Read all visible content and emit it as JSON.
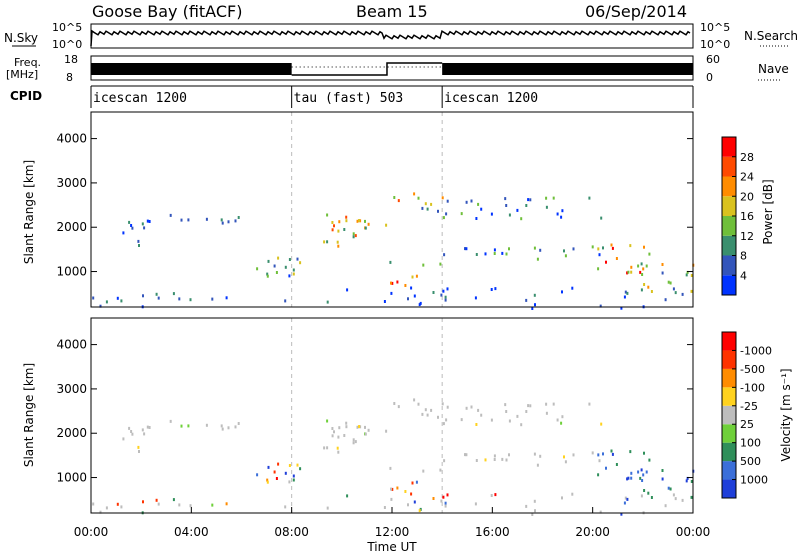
{
  "header": {
    "station": "Goose Bay (fitACF)",
    "beam": "Beam 15",
    "date": "06/Sep/2014"
  },
  "noise_panel": {
    "left_label": "N.Sky",
    "right_label": "N.Search",
    "left_ticks": [
      "10^5",
      "10^0"
    ],
    "right_ticks": [
      "10^5",
      "10^0"
    ]
  },
  "freq_panel": {
    "left_label_top": "Freq.",
    "left_label_bottom": "[MHz]",
    "right_label": "Nave",
    "left_ticks": [
      "18",
      "8"
    ],
    "right_ticks": [
      "60",
      "0"
    ]
  },
  "cpid_panel": {
    "label": "CPID",
    "segments": [
      {
        "name": "icescan 1200",
        "start_hour": 0,
        "end_hour": 8
      },
      {
        "name": "tau (fast) 503",
        "start_hour": 8,
        "end_hour": 14
      },
      {
        "name": "icescan 1200",
        "start_hour": 14,
        "end_hour": 24
      }
    ]
  },
  "colors": {
    "grid_line": "#bbbbbb",
    "ground_scatter": "#bdbdbd"
  },
  "chart_data": [
    {
      "type": "heatmap",
      "panel": "power",
      "ylabel": "Slant Range [km]",
      "yticks": [
        "1000",
        "2000",
        "3000",
        "4000"
      ],
      "ylim": [
        200,
        4600
      ],
      "xlim": [
        0,
        24
      ],
      "colorbar": {
        "label": "Power [dB]",
        "ticks": [
          "4",
          "8",
          "12",
          "16",
          "20",
          "24",
          "28"
        ],
        "colors": [
          "#0033ff",
          "#3355bb",
          "#3a8f6e",
          "#6fbf3a",
          "#d9c21f",
          "#ff8c00",
          "#ff4a00",
          "#ff0000"
        ]
      }
    },
    {
      "type": "heatmap",
      "panel": "velocity",
      "ylabel": "Slant Range [km]",
      "yticks": [
        "1000",
        "2000",
        "3000",
        "4000"
      ],
      "ylim": [
        200,
        4600
      ],
      "xlim": [
        0,
        24
      ],
      "xlabel": "Time UT",
      "xticks": [
        "00:00",
        "04:00",
        "08:00",
        "12:00",
        "16:00",
        "20:00",
        "00:00"
      ],
      "colorbar": {
        "label": "Velocity [m s⁻¹]",
        "ticks": [
          "1000",
          "500",
          "100",
          "25",
          "-25",
          "-100",
          "-500",
          "-1000"
        ],
        "colors": [
          "#1f3fd9",
          "#3b6fd9",
          "#2f8f5a",
          "#6fd03a",
          "#bdbdbd",
          "#ffd21f",
          "#ff8c00",
          "#ff3300",
          "#ff0000"
        ]
      }
    }
  ]
}
